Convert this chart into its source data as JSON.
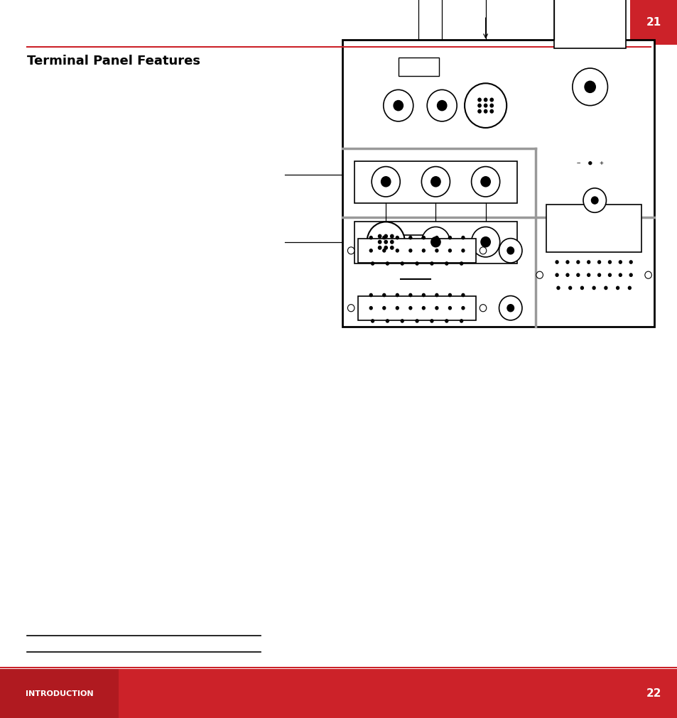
{
  "page_number_top": "21",
  "page_number_bottom": "22",
  "title": "Terminal Panel Features",
  "footer_label": "INTRODUCTION",
  "top_rule_color": "#cc2229",
  "bottom_rule_color": "#cc2229",
  "page_bg": "#ffffff",
  "header_box_color": "#cc2229",
  "footer_box_color": "#cc2229"
}
